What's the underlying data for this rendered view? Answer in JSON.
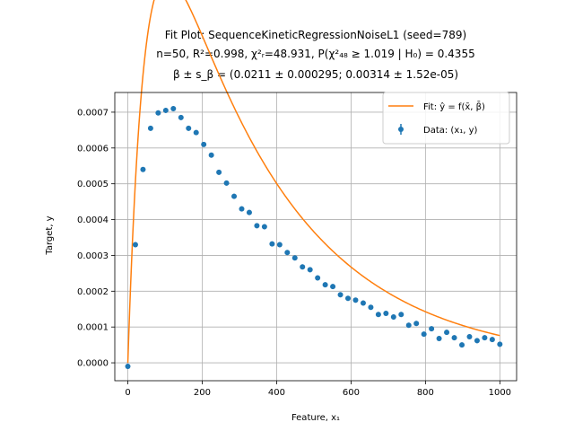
{
  "chart_data": {
    "type": "scatter",
    "title_lines": [
      "Fit Plot: SequenceKineticRegressionNoiseL1 (seed=789)",
      "n=50, R²=0.998, χ²ᵣ=48.931, P(χ²₄₈ ≥ 1.019 | H₀) = 0.4355",
      "β ± s_β = (0.0211 ± 0.000295; 0.00314 ± 1.52e-05)"
    ],
    "xlabel": "Feature, x₁",
    "ylabel": "Target, y",
    "xlim": [
      -35,
      1045
    ],
    "ylim": [
      -5e-05,
      0.000755
    ],
    "xticks": [
      0,
      200,
      400,
      600,
      800,
      1000
    ],
    "xtick_labels": [
      "0",
      "200",
      "400",
      "600",
      "800",
      "1000"
    ],
    "yticks": [
      0,
      0.0001,
      0.0002,
      0.0003,
      0.0004,
      0.0005,
      0.0006,
      0.0007
    ],
    "ytick_labels": [
      "0.0000",
      "0.0001",
      "0.0002",
      "0.0003",
      "0.0004",
      "0.0005",
      "0.0006",
      "0.0007"
    ],
    "grid": true,
    "legend_position": "top-right",
    "legend": {
      "fit_label": "Fit: ŷ = f(x̄, β̄)",
      "data_label": "Data: (x₁, y)"
    },
    "colors": {
      "fit": "#ff7f0e",
      "data": "#1f77b4",
      "grid": "#b0b0b0"
    },
    "fit_params": {
      "a": 0.0211,
      "b": 0.00314
    },
    "series": [
      {
        "name": "Data: (x₁, y)",
        "kind": "errorbar",
        "x": [
          0,
          20.4,
          40.8,
          61.2,
          81.6,
          102.0,
          122.4,
          142.9,
          163.3,
          183.7,
          204.1,
          224.5,
          244.9,
          265.3,
          285.7,
          306.1,
          326.5,
          346.9,
          367.3,
          387.8,
          408.2,
          428.6,
          449.0,
          469.4,
          489.8,
          510.2,
          530.6,
          551.0,
          571.4,
          591.8,
          612.2,
          632.7,
          653.1,
          673.5,
          693.9,
          714.3,
          734.7,
          755.1,
          775.5,
          795.9,
          816.3,
          836.7,
          857.1,
          877.6,
          898.0,
          918.4,
          938.8,
          959.2,
          979.6,
          1000.0
        ],
        "y": [
          -1e-05,
          0.00033,
          0.00054,
          0.000655,
          0.000698,
          0.000705,
          0.00071,
          0.000685,
          0.000655,
          0.000643,
          0.00061,
          0.00058,
          0.000532,
          0.000502,
          0.000465,
          0.00043,
          0.00042,
          0.000383,
          0.00038,
          0.000332,
          0.00033,
          0.000308,
          0.000293,
          0.000268,
          0.00026,
          0.000237,
          0.000218,
          0.000213,
          0.00019,
          0.00018,
          0.000175,
          0.000167,
          0.000155,
          0.000135,
          0.000138,
          0.000128,
          0.000135,
          0.000105,
          0.00011,
          8e-05,
          9.5e-05,
          6.8e-05,
          8.5e-05,
          7e-05,
          5e-05,
          7.3e-05,
          6.2e-05,
          7e-05,
          6.5e-05,
          5.2e-05
        ],
        "yerr": 7e-06
      },
      {
        "name": "Fit: ŷ = f(x̄, β̄)",
        "kind": "line",
        "x_range": [
          0,
          1000
        ]
      }
    ]
  }
}
